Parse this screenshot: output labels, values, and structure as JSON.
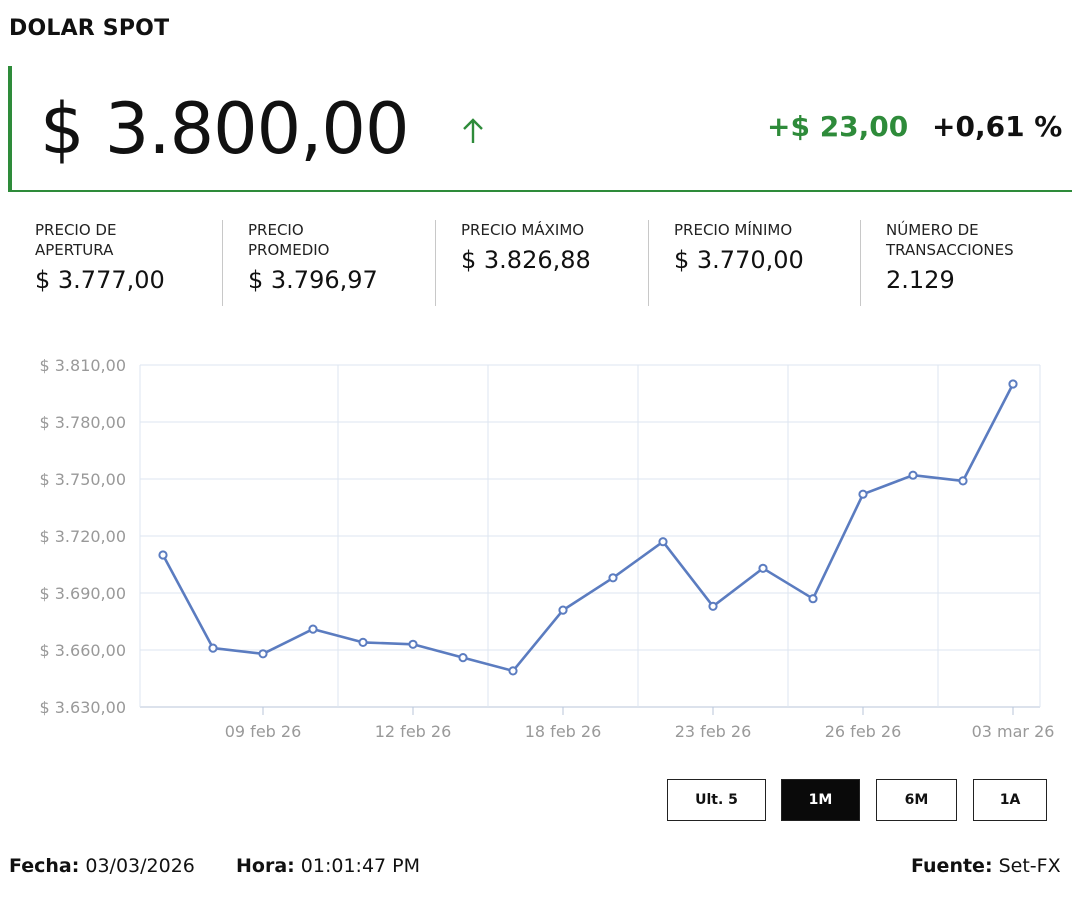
{
  "header": {
    "title": "DOLAR SPOT",
    "price": "$ 3.800,00",
    "change": "+$ 23,00",
    "change_pct": "+0,61 %",
    "trend_icon": "arrow-up-icon",
    "accent_color": "#2e8b3a"
  },
  "stats": [
    {
      "label": "PRECIO DE\nAPERTURA",
      "value": "$ 3.777,00"
    },
    {
      "label": "PRECIO\nPROMEDIO",
      "value": "$ 3.796,97"
    },
    {
      "label": "PRECIO MÁXIMO",
      "value": "$ 3.826,88"
    },
    {
      "label": "PRECIO MÍNIMO",
      "value": "$ 3.770,00"
    },
    {
      "label": "NÚMERO DE\nTRANSACCIONES",
      "value": "2.129"
    }
  ],
  "chart_data": {
    "type": "line",
    "x_tick_labels": [
      "09 feb 26",
      "12 feb 26",
      "18 feb 26",
      "23 feb 26",
      "26 feb 26",
      "03 mar 26"
    ],
    "x_tick_indices": [
      2,
      5,
      8,
      11,
      14,
      17
    ],
    "y_tick_labels": [
      "$ 3.810,00",
      "$ 3.780,00",
      "$ 3.750,00",
      "$ 3.720,00",
      "$ 3.690,00",
      "$ 3.660,00",
      "$ 3.630,00"
    ],
    "ylim": [
      3630,
      3810
    ],
    "y_ticks": [
      3810,
      3780,
      3750,
      3720,
      3690,
      3660,
      3630
    ],
    "values": [
      3710,
      3661,
      3658,
      3671,
      3664,
      3663,
      3656,
      3649,
      3681,
      3698,
      3717,
      3683,
      3703,
      3687,
      3742,
      3752,
      3749,
      3800
    ],
    "line_color": "#5b7cc0",
    "grid": true
  },
  "range_buttons": [
    {
      "label": "Ult. 5",
      "active": false
    },
    {
      "label": "1M",
      "active": true
    },
    {
      "label": "6M",
      "active": false
    },
    {
      "label": "1A",
      "active": false
    }
  ],
  "footer": {
    "fecha_label": "Fecha:",
    "fecha_value": "03/03/2026",
    "hora_label": "Hora:",
    "hora_value": "01:01:47 PM",
    "fuente_label": "Fuente:",
    "fuente_value": "Set-FX"
  }
}
